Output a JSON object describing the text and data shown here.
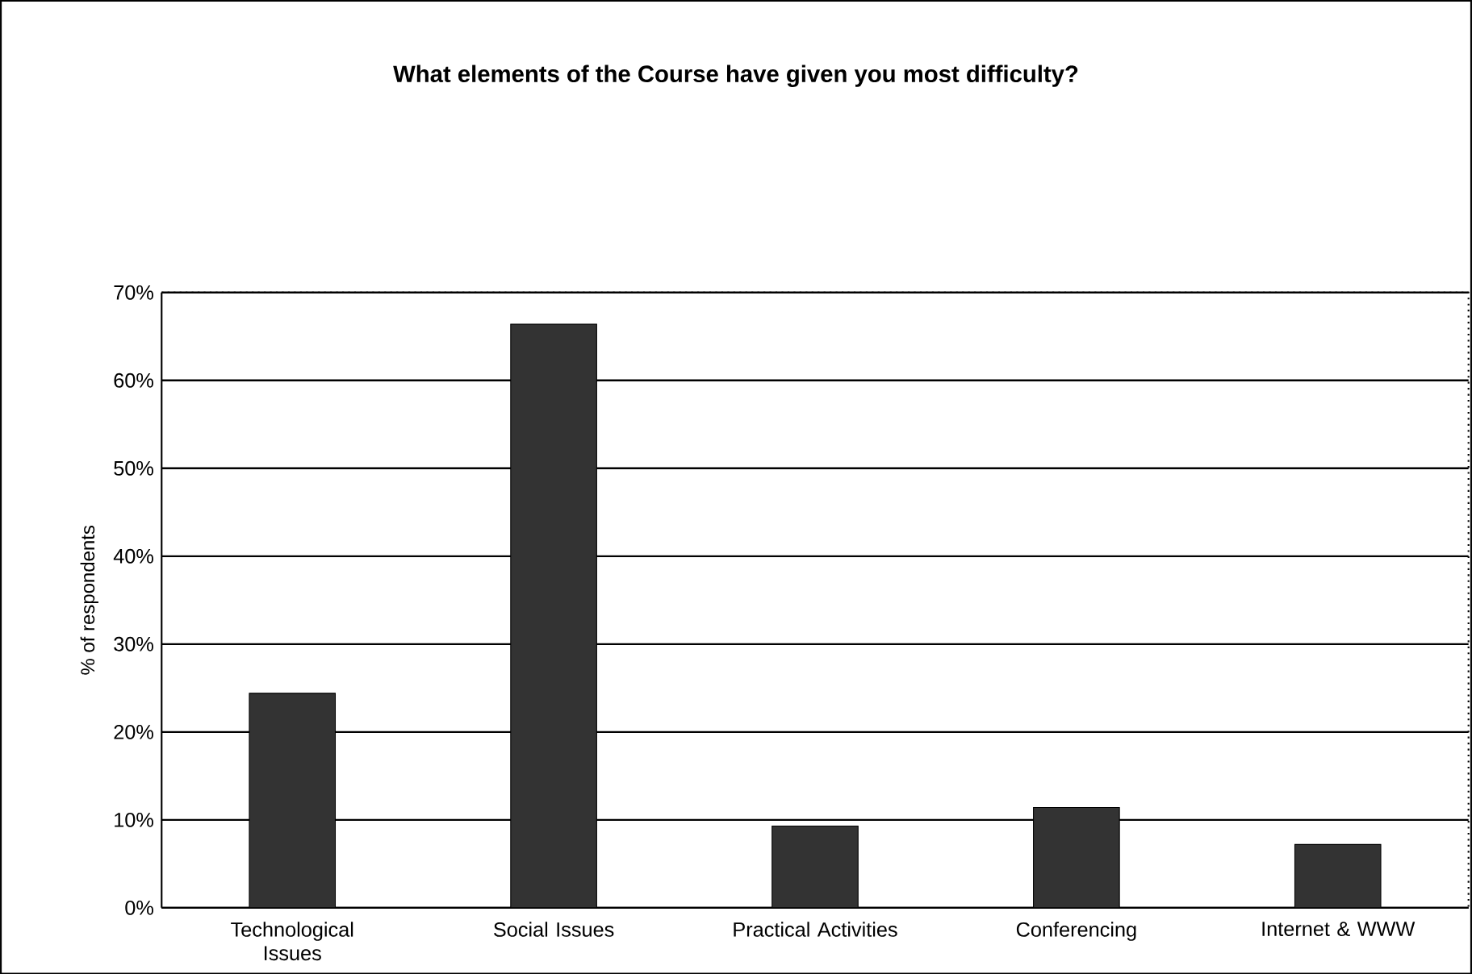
{
  "chart_data": {
    "type": "bar",
    "title": "What elements of the Course have given you most difficulty?",
    "ylabel": "% of respondents",
    "categories": [
      "Technological Issues",
      "Social Issues",
      "Practical Activities",
      "Conferencing",
      "Internet & WWW"
    ],
    "values": [
      24.4,
      66.4,
      9.3,
      11.4,
      7.2
    ],
    "color": "#333333",
    "ylim": [
      0,
      70
    ],
    "yticks": [
      {
        "value": 0,
        "label": "0%"
      },
      {
        "value": 10,
        "label": "10%"
      },
      {
        "value": 20,
        "label": "20%"
      },
      {
        "value": 30,
        "label": "30%"
      },
      {
        "value": 40,
        "label": "40%"
      },
      {
        "value": 50,
        "label": "50%"
      },
      {
        "value": 60,
        "label": "60%"
      },
      {
        "value": 70,
        "label": "70%"
      }
    ],
    "grid": "y"
  }
}
